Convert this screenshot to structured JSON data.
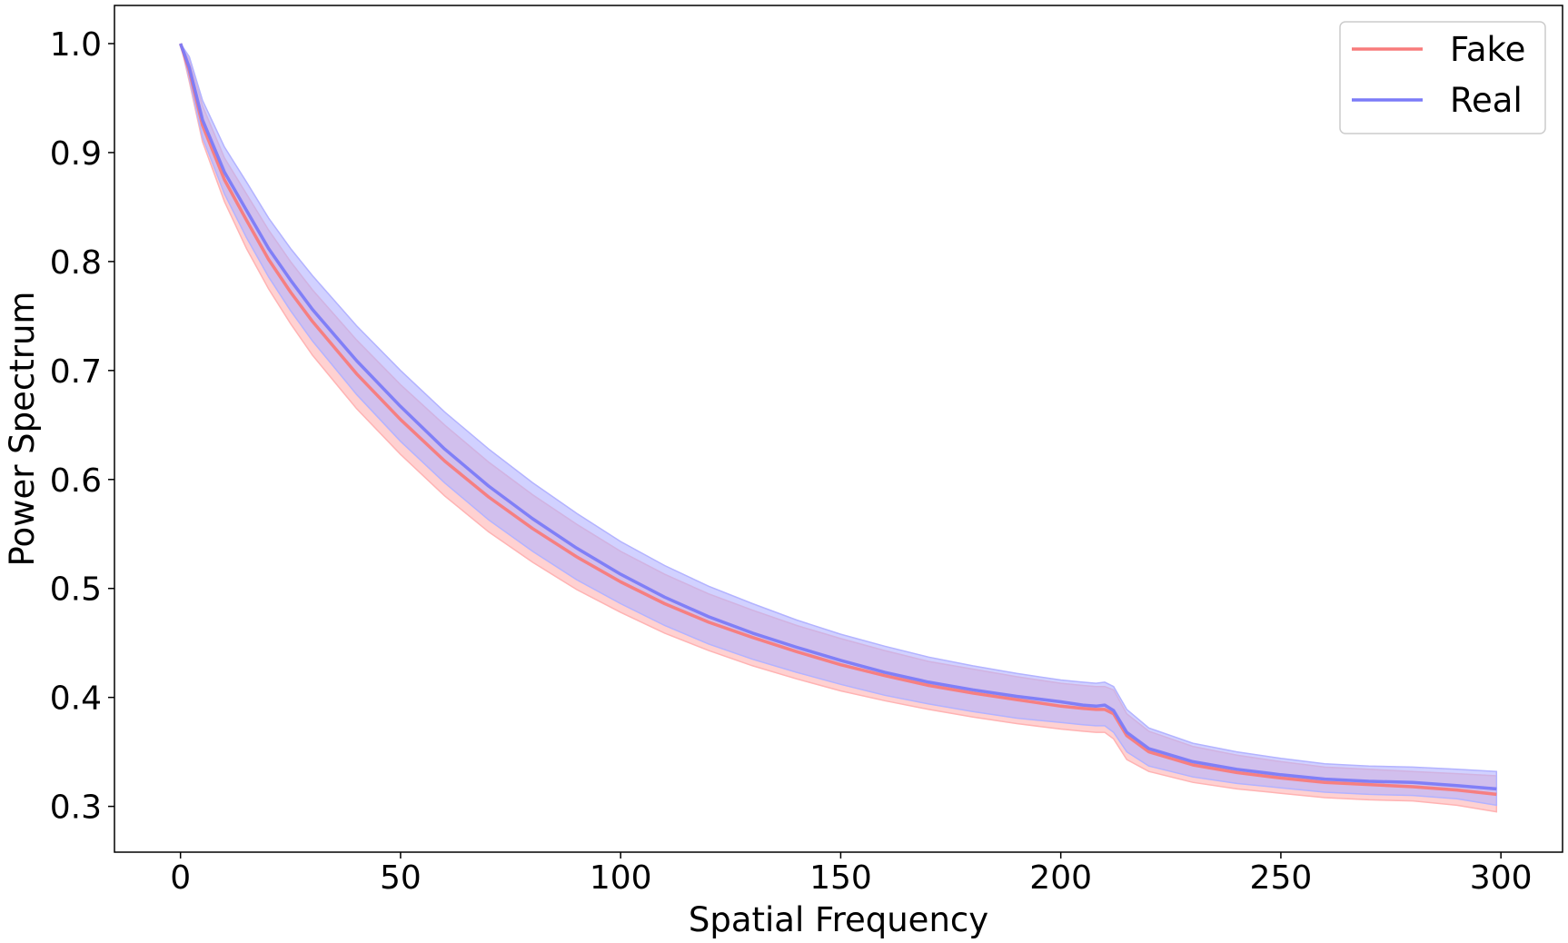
{
  "chart_data": {
    "type": "line",
    "title": "",
    "xlabel": "Spatial Frequency",
    "ylabel": "Power Spectrum",
    "xlim": [
      -15,
      314
    ],
    "ylim": [
      0.258,
      1.035
    ],
    "xticks": [
      0,
      50,
      100,
      150,
      200,
      250,
      300
    ],
    "xtick_labels": [
      "0",
      "50",
      "100",
      "150",
      "200",
      "250",
      "300"
    ],
    "yticks": [
      0.3,
      0.4,
      0.5,
      0.6,
      0.7,
      0.8,
      0.9,
      1.0
    ],
    "ytick_labels": [
      "0.3",
      "0.4",
      "0.5",
      "0.6",
      "0.7",
      "0.8",
      "0.9",
      "1.0"
    ],
    "grid": false,
    "legend_position": "top-right",
    "series": [
      {
        "name": "Fake",
        "color": "#f87b7b",
        "band_color": "#ffb3b3",
        "x": [
          0,
          2,
          5,
          10,
          15,
          20,
          25,
          30,
          40,
          50,
          60,
          70,
          80,
          90,
          100,
          110,
          120,
          130,
          140,
          150,
          160,
          170,
          180,
          190,
          200,
          205,
          208,
          210,
          212,
          215,
          220,
          230,
          240,
          250,
          260,
          270,
          280,
          290,
          299
        ],
        "mean": [
          1.0,
          0.975,
          0.925,
          0.875,
          0.838,
          0.802,
          0.772,
          0.745,
          0.697,
          0.655,
          0.617,
          0.584,
          0.555,
          0.529,
          0.506,
          0.486,
          0.469,
          0.455,
          0.442,
          0.43,
          0.42,
          0.411,
          0.404,
          0.398,
          0.392,
          0.39,
          0.389,
          0.389,
          0.385,
          0.365,
          0.35,
          0.338,
          0.331,
          0.326,
          0.322,
          0.32,
          0.318,
          0.315,
          0.311
        ],
        "lower": [
          1.0,
          0.965,
          0.91,
          0.855,
          0.812,
          0.775,
          0.743,
          0.714,
          0.665,
          0.623,
          0.585,
          0.552,
          0.524,
          0.499,
          0.478,
          0.459,
          0.443,
          0.429,
          0.417,
          0.406,
          0.397,
          0.389,
          0.382,
          0.376,
          0.371,
          0.369,
          0.368,
          0.368,
          0.362,
          0.343,
          0.332,
          0.322,
          0.316,
          0.312,
          0.308,
          0.306,
          0.305,
          0.301,
          0.295
        ],
        "upper": [
          1.0,
          0.985,
          0.943,
          0.895,
          0.862,
          0.829,
          0.8,
          0.774,
          0.728,
          0.687,
          0.65,
          0.616,
          0.586,
          0.559,
          0.534,
          0.513,
          0.495,
          0.48,
          0.466,
          0.454,
          0.443,
          0.433,
          0.426,
          0.419,
          0.413,
          0.411,
          0.41,
          0.41,
          0.407,
          0.385,
          0.369,
          0.355,
          0.347,
          0.341,
          0.336,
          0.334,
          0.332,
          0.33,
          0.328
        ]
      },
      {
        "name": "Real",
        "color": "#7b7bf8",
        "band_color": "#b3b3ff",
        "x": [
          0,
          2,
          5,
          10,
          15,
          20,
          25,
          30,
          40,
          50,
          60,
          70,
          80,
          90,
          100,
          110,
          120,
          130,
          140,
          150,
          160,
          170,
          180,
          190,
          200,
          205,
          208,
          210,
          212,
          215,
          220,
          230,
          240,
          250,
          260,
          270,
          280,
          290,
          299
        ],
        "mean": [
          1.0,
          0.978,
          0.93,
          0.882,
          0.847,
          0.812,
          0.783,
          0.756,
          0.709,
          0.667,
          0.628,
          0.594,
          0.564,
          0.537,
          0.513,
          0.492,
          0.474,
          0.459,
          0.446,
          0.434,
          0.423,
          0.414,
          0.407,
          0.401,
          0.396,
          0.393,
          0.392,
          0.393,
          0.388,
          0.368,
          0.353,
          0.341,
          0.334,
          0.329,
          0.325,
          0.323,
          0.322,
          0.319,
          0.316
        ],
        "lower": [
          1.0,
          0.968,
          0.914,
          0.862,
          0.822,
          0.786,
          0.755,
          0.727,
          0.678,
          0.635,
          0.597,
          0.563,
          0.534,
          0.508,
          0.486,
          0.466,
          0.449,
          0.435,
          0.423,
          0.412,
          0.402,
          0.394,
          0.387,
          0.381,
          0.377,
          0.375,
          0.374,
          0.374,
          0.368,
          0.35,
          0.337,
          0.327,
          0.321,
          0.317,
          0.313,
          0.311,
          0.31,
          0.307,
          0.301
        ],
        "upper": [
          1.0,
          0.988,
          0.948,
          0.905,
          0.873,
          0.84,
          0.812,
          0.787,
          0.741,
          0.7,
          0.662,
          0.628,
          0.597,
          0.569,
          0.543,
          0.521,
          0.502,
          0.486,
          0.471,
          0.458,
          0.447,
          0.437,
          0.429,
          0.422,
          0.416,
          0.414,
          0.413,
          0.414,
          0.41,
          0.389,
          0.372,
          0.358,
          0.35,
          0.344,
          0.339,
          0.337,
          0.336,
          0.334,
          0.332
        ]
      }
    ]
  }
}
